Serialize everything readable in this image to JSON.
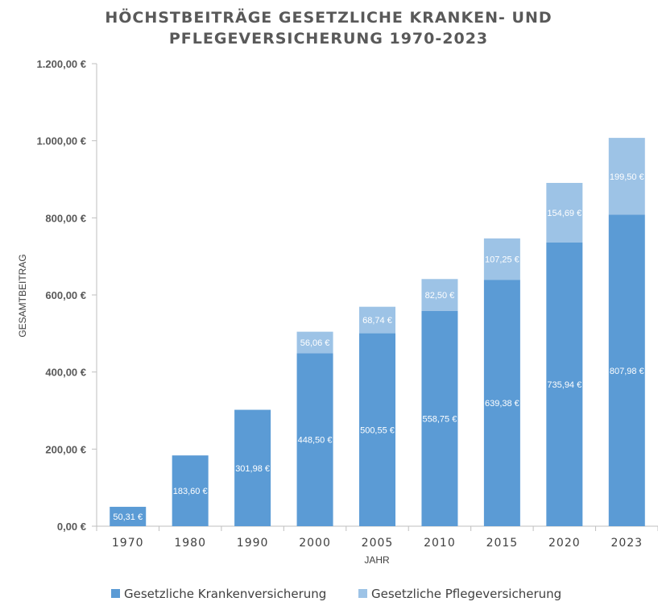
{
  "colors": {
    "kranken": "#5b9bd5",
    "pflege": "#9dc3e6",
    "grid": "#d9d9d9",
    "axis": "#bfbfbf"
  },
  "chart_data": {
    "type": "bar",
    "stacked": true,
    "title_lines": [
      "HÖCHSTBEITRÄGE GESETZLICHE KRANKEN- UND",
      "PFLEGEVERSICHERUNG 1970-2023"
    ],
    "xlabel": "JAHR",
    "ylabel": "GESAMTBEITRAG",
    "ylim": [
      0,
      1200
    ],
    "grid": false,
    "legend_position": "bottom",
    "yticks": [
      0,
      200,
      400,
      600,
      800,
      1000,
      1200
    ],
    "ytick_labels": [
      "0,00 €",
      "200,00 €",
      "400,00 €",
      "600,00 €",
      "800,00 €",
      "1.000,00 €",
      "1.200,00 €"
    ],
    "categories": [
      "1970",
      "1980",
      "1990",
      "2000",
      "2005",
      "2010",
      "2015",
      "2020",
      "2023"
    ],
    "series": [
      {
        "name": "Gesetzliche Krankenversicherung",
        "values": [
          50.31,
          183.6,
          301.98,
          448.5,
          500.55,
          558.75,
          639.38,
          735.94,
          807.98
        ],
        "labels": [
          "50,31 €",
          "183,60 €",
          "301,98 €",
          "448,50 €",
          "500,55 €",
          "558,75 €",
          "639,38 €",
          "735,94 €",
          "807,98 €"
        ]
      },
      {
        "name": "Gesetzliche Pflegeversicherung",
        "values": [
          null,
          null,
          null,
          56.06,
          68.74,
          82.5,
          107.25,
          154.69,
          199.5
        ],
        "labels": [
          "",
          "",
          "",
          "56,06 €",
          "68,74 €",
          "82,50 €",
          "107,25 €",
          "154,69 €",
          "199,50 €"
        ]
      }
    ]
  }
}
